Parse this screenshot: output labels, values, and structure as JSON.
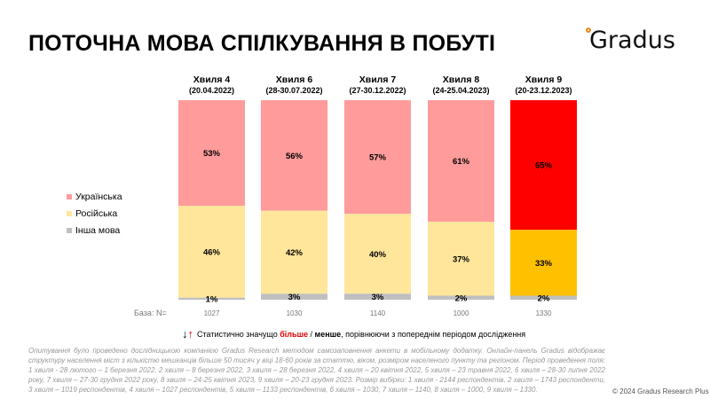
{
  "title": "ПОТОЧНА МОВА СПІЛКУВАННЯ В ПОБУТІ",
  "logo": "Gradus",
  "chart_data": {
    "type": "bar",
    "stacked": true,
    "categories": [
      "Хвиля 4",
      "Хвиля 6",
      "Хвиля 7",
      "Хвиля 8",
      "Хвиля 9"
    ],
    "category_dates": [
      "(20.04.2022)",
      "(28-30.07.2022)",
      "(27-30.12.2022)",
      "(24-25.04.2023)",
      "(20-23.12.2023)"
    ],
    "series": [
      {
        "name": "Українська",
        "values": [
          53,
          56,
          57,
          61,
          65
        ],
        "color": "#FF9B9B",
        "highlight_color": "#FF0000"
      },
      {
        "name": "Російська",
        "values": [
          46,
          42,
          40,
          37,
          33
        ],
        "color": "#FFE69A",
        "highlight_color": "#FFC000"
      },
      {
        "name": "Інша мова",
        "values": [
          1,
          3,
          3,
          2,
          2
        ],
        "color": "#BFBFBF",
        "highlight_color": "#BFBFBF"
      }
    ],
    "highlighted_category": "Хвиля 9",
    "unit": "%",
    "ylim": [
      0,
      100
    ],
    "legend_position": "left",
    "grid": false
  },
  "base": {
    "label": "База: N=",
    "values": [
      "1027",
      "1030",
      "1140",
      "1000",
      "1330"
    ]
  },
  "significance": {
    "prefix": "Статистично значущо ",
    "more": "більше",
    "sep": " / ",
    "less": "менше",
    "suffix": ", порівнюючи з попереднім періодом дослідження"
  },
  "note": "Опитування було проведено дослідницькою компанією Gradus Research методом самозаповнення анкети в мобільному додатку. Онлайн-панель Gradus відображає структуру населення міст з кількістю мешканців більше 50 тисяч у віці 18-60 років за статтю, віком, розміром населеного пункту та регіоном. Період проведення поля: 1 хвиля - 28 лютого – 1 березня 2022, 2 хвиля – 8 березня 2022, 3 хвиля – 28 березня 2022, 4 хвиля – 20 квітня 2022, 5 хвиля – 23 травня 2022, 6 хвиля – 28-30 липня 2022 року, 7 хвиля – 27-30 грудня 2022 року, 8 хвиля – 24-25 квітня 2023, 9 хвиля – 20-23 грудня 2023. Розмір вибірки: 1 хвиля - 2144 респондентів, 2 хвиля – 1743 респонденти, 3 хвиля – 1019 респондентів, 4 хвиля – 1027 респондентів, 5 хвиля – 1133 респондентів, 6 хвиля – 1030, 7 хвиля – 1140, 8 хвиля – 1000, 9 хвиля – 1330.",
  "copyright": "© 2024 Gradus Research Plus"
}
